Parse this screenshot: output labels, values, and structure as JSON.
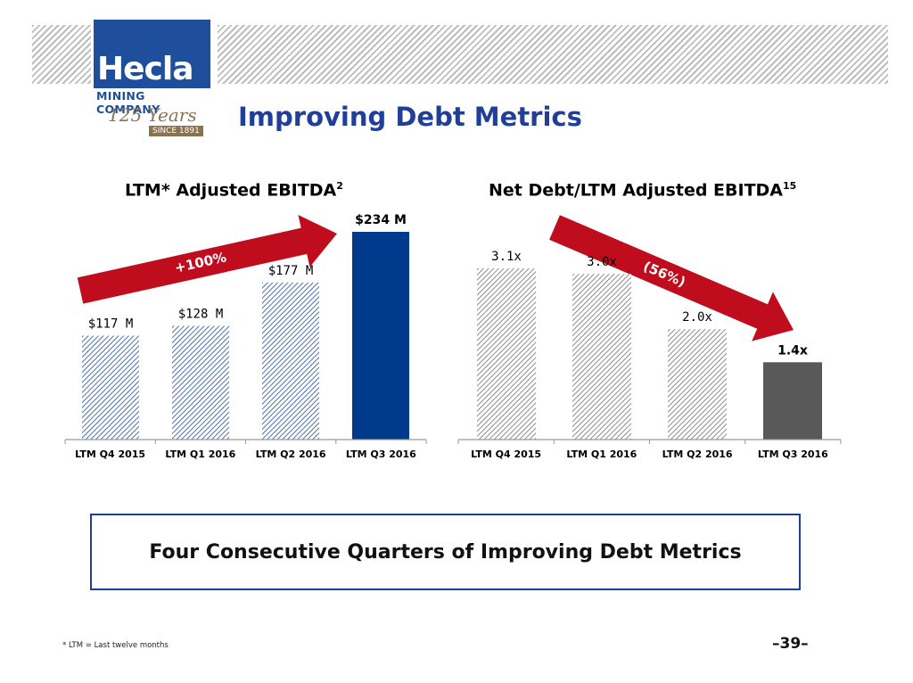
{
  "header": {
    "logo": {
      "word": "Hecla",
      "company": "MINING COMPANY",
      "years": "125 Years",
      "since": "SINCE 1891"
    },
    "title": "Improving Debt Metrics"
  },
  "chart_data": [
    {
      "type": "bar",
      "title": "LTM* Adjusted EBITDA",
      "title_superscript": "2",
      "categories": [
        "LTM Q4 2015",
        "LTM Q1 2016",
        "LTM Q2 2016",
        "LTM Q3 2016"
      ],
      "values": [
        117,
        128,
        177,
        234
      ],
      "data_labels": [
        "$117 M",
        "$128 M",
        "$177 M",
        "$234 M"
      ],
      "ylim": [
        0,
        260
      ],
      "grid": false,
      "annotation": "+100%",
      "colors": {
        "hatch": "#1f4e9c",
        "highlight": "#003a8c",
        "arrow": "#c00d1e"
      }
    },
    {
      "type": "bar",
      "title": "Net Debt/LTM Adjusted EBITDA",
      "title_superscript": "15",
      "categories": [
        "LTM Q4 2015",
        "LTM Q1 2016",
        "LTM Q2 2016",
        "LTM Q3 2016"
      ],
      "values": [
        3.1,
        3.0,
        2.0,
        1.4
      ],
      "data_labels": [
        "3.1x",
        "3.0x",
        "2.0x",
        "1.4x"
      ],
      "ylim": [
        0,
        3.6
      ],
      "grid": false,
      "annotation": "(56%)",
      "colors": {
        "hatch": "#707070",
        "highlight": "#595959",
        "arrow": "#c00d1e"
      }
    }
  ],
  "callout": "Four Consecutive Quarters of Improving Debt Metrics",
  "footnote": "* LTM = Last twelve months",
  "page_number": "–39–"
}
